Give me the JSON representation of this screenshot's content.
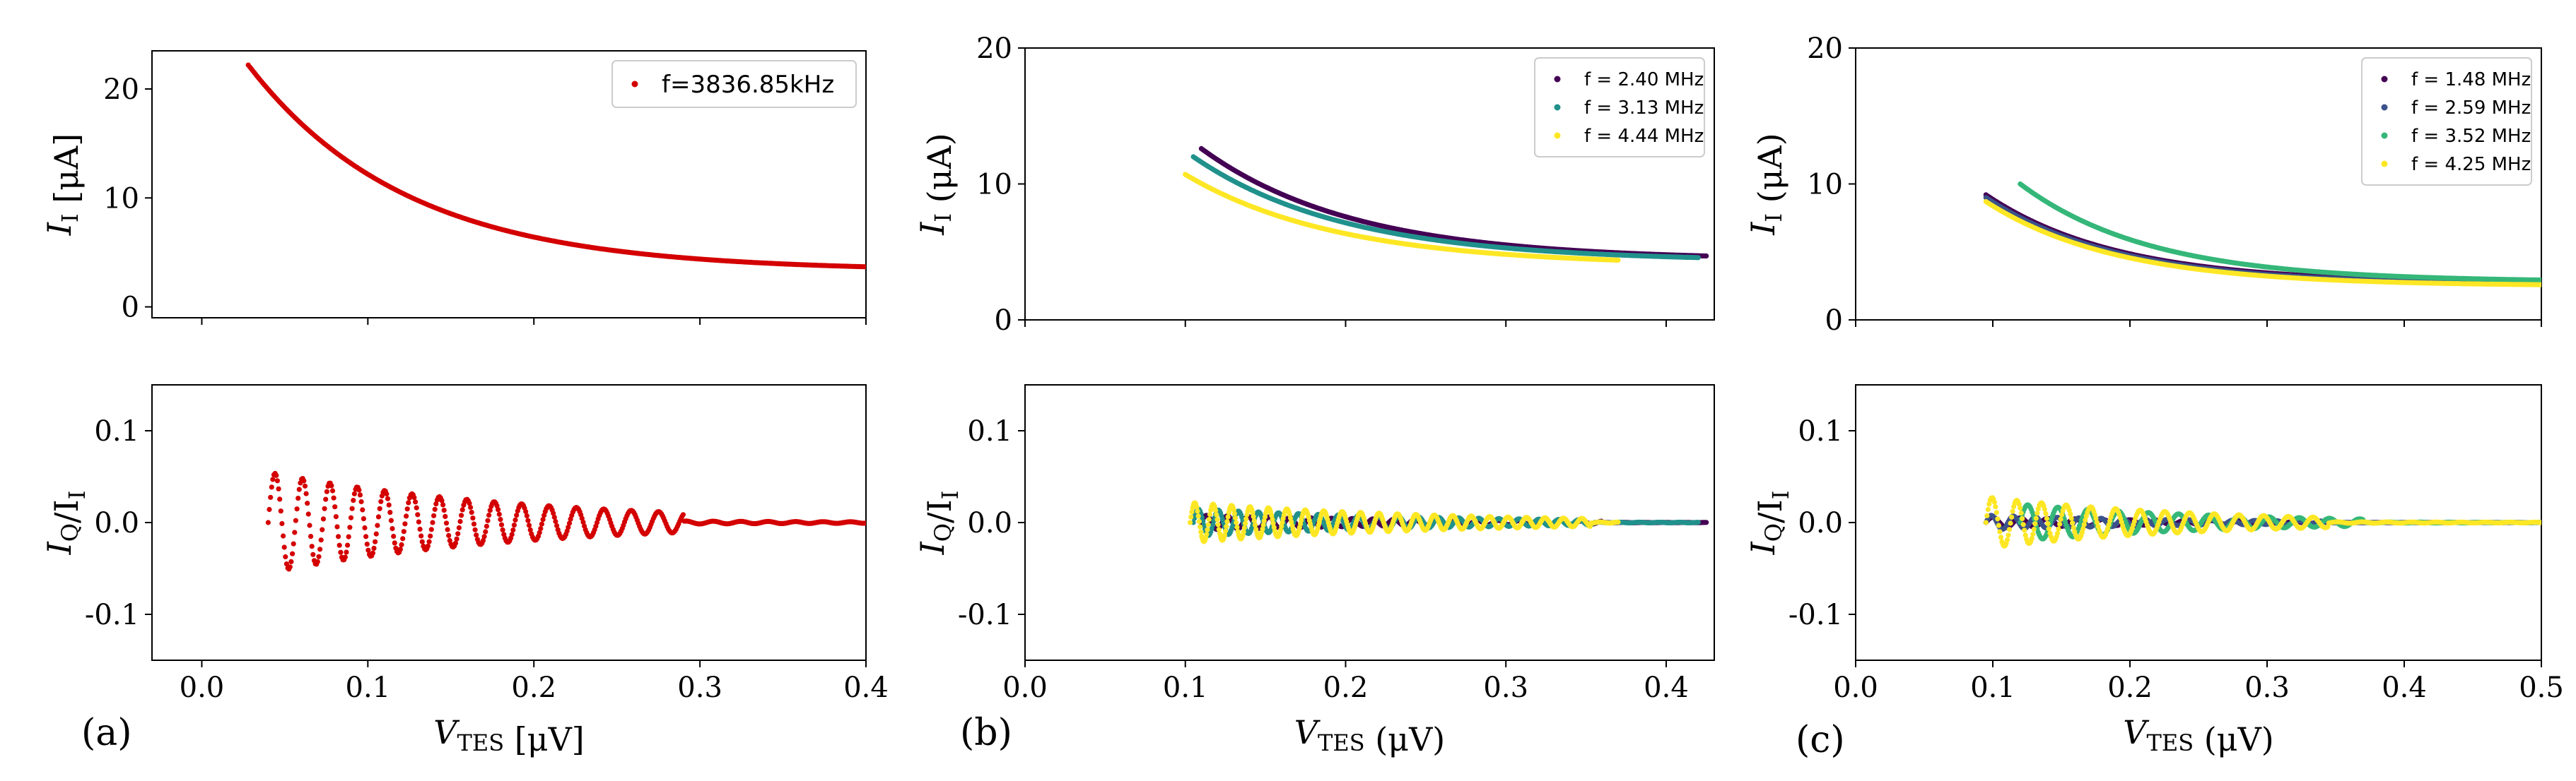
{
  "colors": {
    "red": "#d40000",
    "viridis_dark": "#440154",
    "viridis_blue": "#3b528b",
    "viridis_teal": "#21918c",
    "viridis_green": "#35b779",
    "viridis_yellow": "#fde725"
  },
  "panels": {
    "a": {
      "tag": "(a)"
    },
    "b": {
      "tag": "(b)"
    },
    "c": {
      "tag": "(c)"
    }
  },
  "chart_data": [
    {
      "id": "a-top",
      "type": "scatter",
      "panel": "(a)",
      "ylabel": "I_I [μA]",
      "xlabel": "",
      "xlim": [
        -0.03,
        0.4
      ],
      "ylim": [
        -1,
        23.5
      ],
      "yticks": [
        0,
        10,
        20
      ],
      "xticks": [
        0.0,
        0.1,
        0.2,
        0.3,
        0.4
      ],
      "show_xtick_labels": false,
      "legend": "top-right",
      "series": [
        {
          "name": "f=3836.85kHz",
          "color": "#d40000",
          "curve": "decay",
          "x0": 0.028,
          "x1": 0.4,
          "y_start": 22.2,
          "y_floor": 3.3
        }
      ]
    },
    {
      "id": "a-bottom",
      "type": "scatter",
      "panel": "(a)",
      "ylabel": "I_Q/I_I",
      "xlabel": "V_TES [μV]",
      "xlim": [
        -0.03,
        0.4
      ],
      "ylim": [
        -0.15,
        0.15
      ],
      "yticks": [
        -0.1,
        0.0,
        0.1
      ],
      "xticks": [
        0.0,
        0.1,
        0.2,
        0.3,
        0.4
      ],
      "show_xtick_labels": true,
      "series": [
        {
          "name": "f=3836.85kHz",
          "color": "#d40000",
          "curve": "oscillation",
          "x0": 0.04,
          "x1": 0.4,
          "amp": 0.055,
          "period": 0.0165
        }
      ]
    },
    {
      "id": "b-top",
      "type": "scatter",
      "panel": "(b)",
      "ylabel": "I_I (μA)",
      "xlabel": "",
      "xlim": [
        0.0,
        0.43
      ],
      "ylim": [
        0,
        20
      ],
      "yticks": [
        0,
        10,
        20
      ],
      "xticks": [
        0.0,
        0.1,
        0.2,
        0.3,
        0.4
      ],
      "show_xtick_labels": false,
      "legend": "top-right",
      "series": [
        {
          "name": "f = 2.40 MHz",
          "color": "#440154",
          "curve": "decay",
          "x0": 0.11,
          "x1": 0.425,
          "y_start": 12.6,
          "y_floor": 4.4
        },
        {
          "name": "f = 3.13 MHz",
          "color": "#21918c",
          "curve": "decay",
          "x0": 0.105,
          "x1": 0.42,
          "y_start": 12.0,
          "y_floor": 4.3
        },
        {
          "name": "f = 4.44 MHz",
          "color": "#fde725",
          "curve": "decay",
          "x0": 0.1,
          "x1": 0.37,
          "y_start": 10.7,
          "y_floor": 4.0
        }
      ]
    },
    {
      "id": "b-bottom",
      "type": "scatter",
      "panel": "(b)",
      "ylabel": "I_Q/I_I",
      "xlabel": "V_TES (μV)",
      "xlim": [
        0.0,
        0.43
      ],
      "ylim": [
        -0.15,
        0.15
      ],
      "yticks": [
        -0.1,
        0.0,
        0.1
      ],
      "xticks": [
        0.0,
        0.1,
        0.2,
        0.3,
        0.4,
        0.5
      ],
      "show_xtick_labels": true,
      "series": [
        {
          "name": "f = 2.40 MHz",
          "color": "#440154",
          "curve": "oscillation",
          "x0": 0.11,
          "x1": 0.425,
          "amp": 0.008,
          "period": 0.013
        },
        {
          "name": "f = 3.13 MHz",
          "color": "#21918c",
          "curve": "oscillation",
          "x0": 0.105,
          "x1": 0.42,
          "amp": 0.015,
          "period": 0.0125
        },
        {
          "name": "f = 4.44 MHz",
          "color": "#fde725",
          "curve": "oscillation",
          "x0": 0.103,
          "x1": 0.37,
          "amp": 0.022,
          "period": 0.0115
        }
      ]
    },
    {
      "id": "c-top",
      "type": "scatter",
      "panel": "(c)",
      "ylabel": "I_I (μA)",
      "xlabel": "",
      "xlim": [
        0.0,
        0.5
      ],
      "ylim": [
        0,
        20
      ],
      "yticks": [
        0,
        10,
        20
      ],
      "xticks": [
        0.0,
        0.1,
        0.2,
        0.3,
        0.4,
        0.5
      ],
      "show_xtick_labels": false,
      "legend": "top-right",
      "series": [
        {
          "name": "f = 1.48 MHz",
          "color": "#440154",
          "curve": "decay",
          "x0": 0.095,
          "x1": 0.5,
          "y_start": 9.2,
          "y_floor": 2.7
        },
        {
          "name": "f = 2.59 MHz",
          "color": "#3b528b",
          "curve": "decay",
          "x0": 0.095,
          "x1": 0.5,
          "y_start": 9.0,
          "y_floor": 2.6
        },
        {
          "name": "f = 3.52 MHz",
          "color": "#35b779",
          "curve": "decay",
          "x0": 0.12,
          "x1": 0.5,
          "y_start": 10.0,
          "y_floor": 2.8
        },
        {
          "name": "f = 4.25 MHz",
          "color": "#fde725",
          "curve": "decay",
          "x0": 0.095,
          "x1": 0.5,
          "y_start": 8.7,
          "y_floor": 2.5
        }
      ]
    },
    {
      "id": "c-bottom",
      "type": "scatter",
      "panel": "(c)",
      "ylabel": "I_Q/I_I",
      "xlabel": "V_TES (μV)",
      "xlim": [
        0.0,
        0.5
      ],
      "ylim": [
        -0.15,
        0.15
      ],
      "yticks": [
        -0.1,
        0.0,
        0.1
      ],
      "xticks": [
        0.0,
        0.1,
        0.2,
        0.3,
        0.4,
        0.5
      ],
      "show_xtick_labels": true,
      "series": [
        {
          "name": "f = 1.48 MHz",
          "color": "#440154",
          "curve": "oscillation",
          "x0": 0.095,
          "x1": 0.5,
          "amp": 0.006,
          "period": 0.02
        },
        {
          "name": "f = 2.59 MHz",
          "color": "#3b528b",
          "curve": "oscillation",
          "x0": 0.095,
          "x1": 0.5,
          "amp": 0.008,
          "period": 0.016
        },
        {
          "name": "f = 3.52 MHz",
          "color": "#35b779",
          "curve": "oscillation",
          "x0": 0.12,
          "x1": 0.5,
          "amp": 0.02,
          "period": 0.022
        },
        {
          "name": "f = 4.25 MHz",
          "color": "#fde725",
          "curve": "oscillation",
          "x0": 0.095,
          "x1": 0.5,
          "amp": 0.028,
          "period": 0.018
        }
      ]
    }
  ]
}
